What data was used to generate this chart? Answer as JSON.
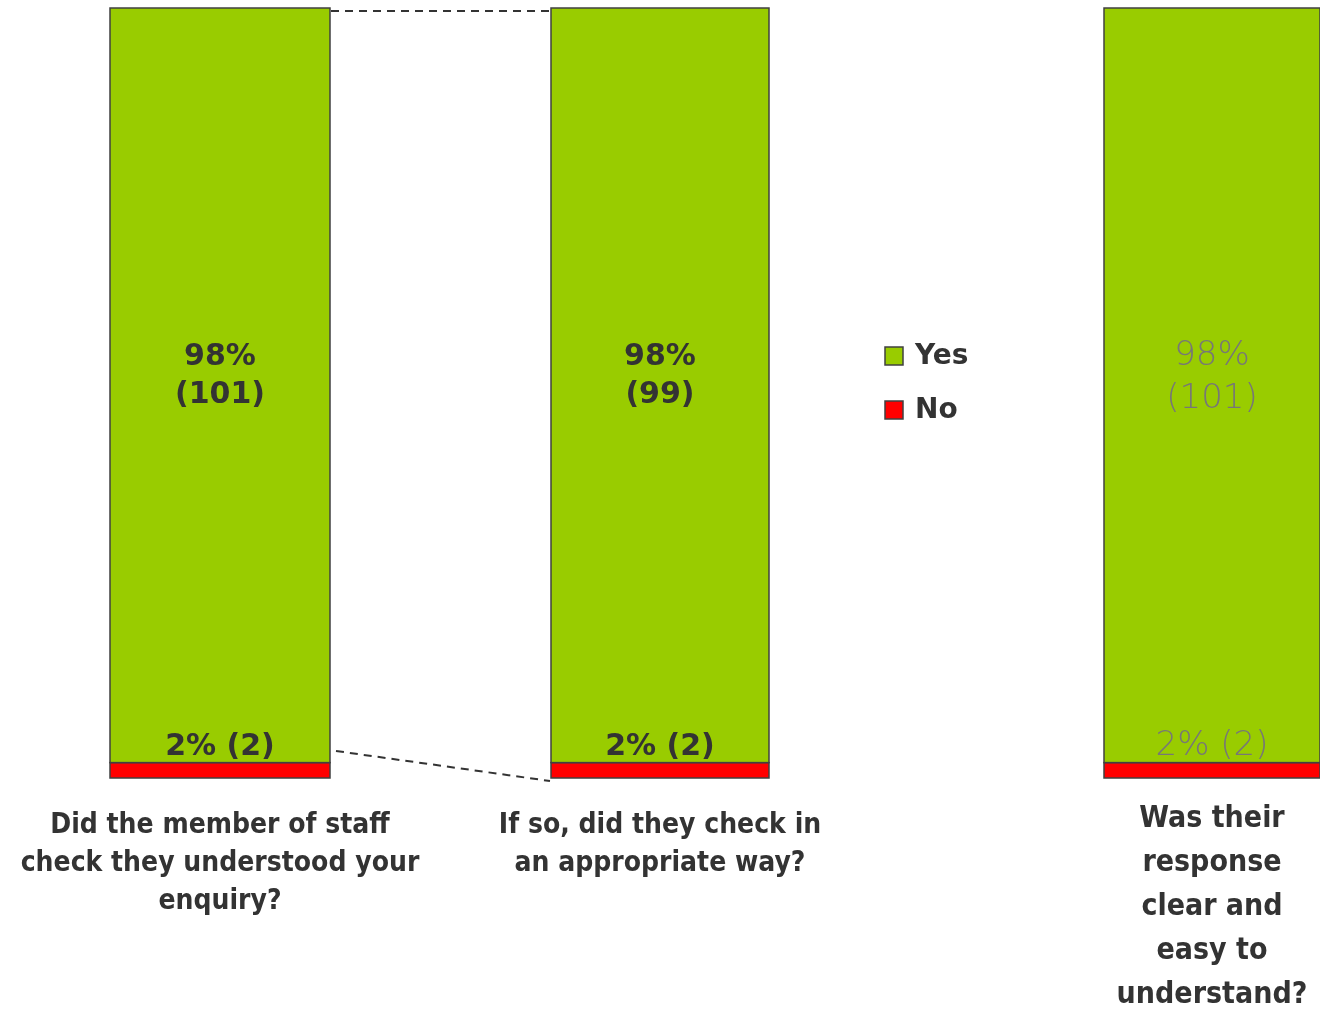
{
  "chart_data": {
    "type": "bar",
    "stacked": true,
    "legend": "right",
    "categories": [
      "Did the member of staff check they understood your enquiry?",
      "If so, did they check in an appropriate way?",
      "Was their response clear and easy to understand?"
    ],
    "series": [
      {
        "name": "No",
        "color": "#ff0000",
        "values": [
          2,
          2,
          2
        ],
        "value_labels": [
          "2% (2)",
          "2% (2)",
          "2% (2)"
        ]
      },
      {
        "name": "Yes",
        "color": "#99cc00",
        "values": [
          98,
          98,
          98
        ],
        "value_labels": [
          "98% (101)",
          "98% (99)",
          "98% (101)"
        ]
      }
    ]
  }
}
